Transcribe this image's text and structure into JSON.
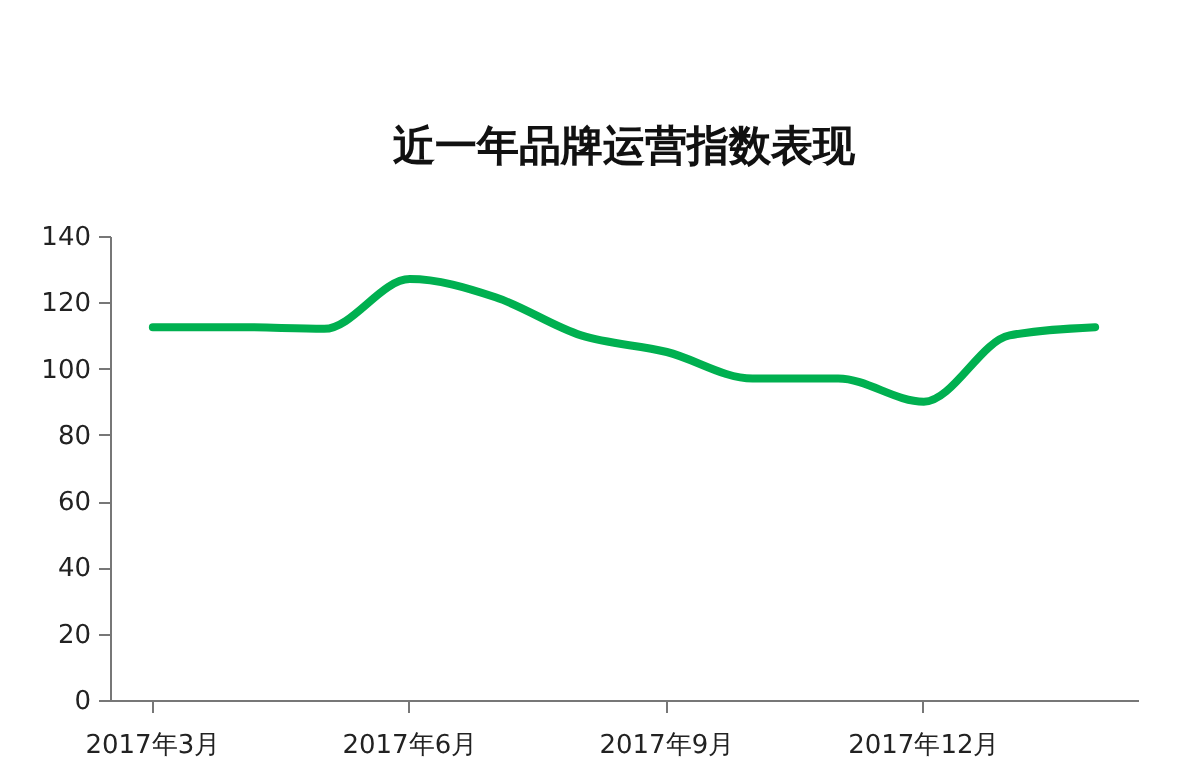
{
  "chart_data": {
    "type": "line",
    "title": "近一年品牌运营指数表现",
    "categories": [
      "2017年3月",
      null,
      null,
      "2017年6月",
      null,
      null,
      "2017年9月",
      null,
      null,
      "2017年12月",
      null,
      null
    ],
    "series": [
      {
        "color": "#00b050",
        "values": [
          112.5,
          112.5,
          112,
          127,
          121.5,
          110,
          105,
          97,
          97,
          90,
          110,
          112.5
        ]
      }
    ],
    "ylim": [
      0,
      140
    ],
    "yticks": [
      0,
      20,
      40,
      60,
      80,
      100,
      120,
      140
    ]
  }
}
